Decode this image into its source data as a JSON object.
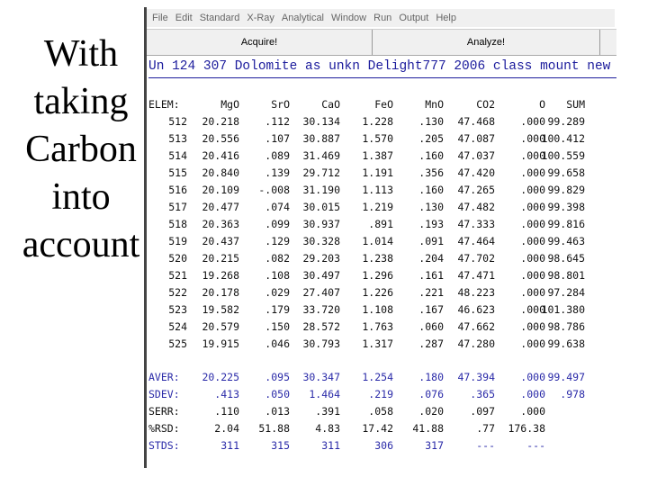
{
  "caption": [
    "With",
    "taking",
    "Carbon",
    "into",
    "account"
  ],
  "menu": [
    "File",
    "Edit",
    "Standard",
    "X-Ray",
    "Analytical",
    "Window",
    "Run",
    "Output",
    "Help"
  ],
  "buttons": {
    "acquire": "Acquire!",
    "analyze": "Analyze!"
  },
  "sample_title": "Un  124 307 Dolomite as unkn Delight777 2006 class mount new",
  "table": {
    "label": "ELEM:",
    "columns": [
      "MgO",
      "SrO",
      "CaO",
      "FeO",
      "MnO",
      "CO2",
      "O",
      "SUM"
    ],
    "rows": [
      [
        "512",
        "20.218",
        ".112",
        "30.134",
        "1.228",
        ".130",
        "47.468",
        ".000",
        "99.289"
      ],
      [
        "513",
        "20.556",
        ".107",
        "30.887",
        "1.570",
        ".205",
        "47.087",
        ".000",
        "100.412"
      ],
      [
        "514",
        "20.416",
        ".089",
        "31.469",
        "1.387",
        ".160",
        "47.037",
        ".000",
        "100.559"
      ],
      [
        "515",
        "20.840",
        ".139",
        "29.712",
        "1.191",
        ".356",
        "47.420",
        ".000",
        "99.658"
      ],
      [
        "516",
        "20.109",
        "-.008",
        "31.190",
        "1.113",
        ".160",
        "47.265",
        ".000",
        "99.829"
      ],
      [
        "517",
        "20.477",
        ".074",
        "30.015",
        "1.219",
        ".130",
        "47.482",
        ".000",
        "99.398"
      ],
      [
        "518",
        "20.363",
        ".099",
        "30.937",
        ".891",
        ".193",
        "47.333",
        ".000",
        "99.816"
      ],
      [
        "519",
        "20.437",
        ".129",
        "30.328",
        "1.014",
        ".091",
        "47.464",
        ".000",
        "99.463"
      ],
      [
        "520",
        "20.215",
        ".082",
        "29.203",
        "1.238",
        ".204",
        "47.702",
        ".000",
        "98.645"
      ],
      [
        "521",
        "19.268",
        ".108",
        "30.497",
        "1.296",
        ".161",
        "47.471",
        ".000",
        "98.801"
      ],
      [
        "522",
        "20.178",
        ".029",
        "27.407",
        "1.226",
        ".221",
        "48.223",
        ".000",
        "97.284"
      ],
      [
        "523",
        "19.582",
        ".179",
        "33.720",
        "1.108",
        ".167",
        "46.623",
        ".000",
        "101.380"
      ],
      [
        "524",
        "20.579",
        ".150",
        "28.572",
        "1.763",
        ".060",
        "47.662",
        ".000",
        "98.786"
      ],
      [
        "525",
        "19.915",
        ".046",
        "30.793",
        "1.317",
        ".287",
        "47.280",
        ".000",
        "99.638"
      ]
    ],
    "stats": [
      {
        "label": "AVER:",
        "values": [
          "20.225",
          ".095",
          "30.347",
          "1.254",
          ".180",
          "47.394",
          ".000",
          "99.497"
        ]
      },
      {
        "label": "SDEV:",
        "values": [
          ".413",
          ".050",
          "1.464",
          ".219",
          ".076",
          ".365",
          ".000",
          ".978"
        ]
      },
      {
        "label": "SERR:",
        "values": [
          ".110",
          ".013",
          ".391",
          ".058",
          ".020",
          ".097",
          ".000",
          ""
        ]
      },
      {
        "label": "%RSD:",
        "values": [
          "2.04",
          "51.88",
          "4.83",
          "17.42",
          "41.88",
          ".77",
          "176.38",
          ""
        ]
      },
      {
        "label": "STDS:",
        "values": [
          "311",
          "315",
          "311",
          "306",
          "317",
          "---",
          "---",
          ""
        ]
      }
    ]
  },
  "colors": {
    "stats_blue": "#2a2aa8",
    "title_blue": "#1b1b9c"
  }
}
